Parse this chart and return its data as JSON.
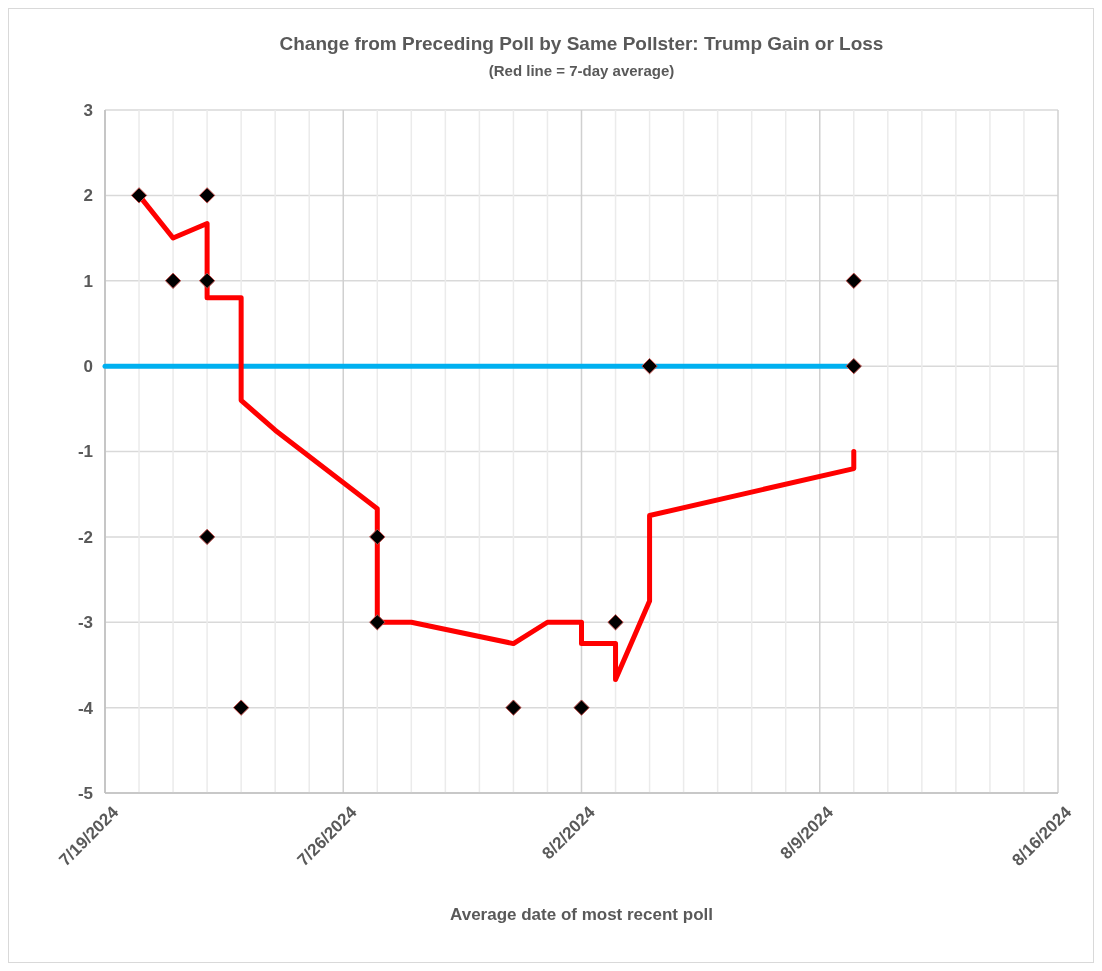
{
  "chart_data": {
    "type": "scatter",
    "title": "Change from Preceding Poll by Same Pollster: Trump Gain or Loss",
    "subtitle": "(Red line = 7-day average)",
    "xlabel": "Average date of most recent poll",
    "xlim": [
      "2024-07-19",
      "2024-08-16"
    ],
    "xticks": [
      {
        "value": "2024-07-19",
        "label": "7/19/2024"
      },
      {
        "value": "2024-07-20",
        "label": null
      },
      {
        "value": "2024-07-21",
        "label": null
      },
      {
        "value": "2024-07-22",
        "label": null
      },
      {
        "value": "2024-07-23",
        "label": null
      },
      {
        "value": "2024-07-24",
        "label": null
      },
      {
        "value": "2024-07-25",
        "label": null
      },
      {
        "value": "2024-07-26",
        "label": "7/26/2024"
      },
      {
        "value": "2024-07-27",
        "label": null
      },
      {
        "value": "2024-07-28",
        "label": null
      },
      {
        "value": "2024-07-29",
        "label": null
      },
      {
        "value": "2024-07-30",
        "label": null
      },
      {
        "value": "2024-07-31",
        "label": null
      },
      {
        "value": "2024-08-01",
        "label": null
      },
      {
        "value": "2024-08-02",
        "label": "8/2/2024"
      },
      {
        "value": "2024-08-03",
        "label": null
      },
      {
        "value": "2024-08-04",
        "label": null
      },
      {
        "value": "2024-08-05",
        "label": null
      },
      {
        "value": "2024-08-06",
        "label": null
      },
      {
        "value": "2024-08-07",
        "label": null
      },
      {
        "value": "2024-08-08",
        "label": null
      },
      {
        "value": "2024-08-09",
        "label": "8/9/2024"
      },
      {
        "value": "2024-08-10",
        "label": null
      },
      {
        "value": "2024-08-11",
        "label": null
      },
      {
        "value": "2024-08-12",
        "label": null
      },
      {
        "value": "2024-08-13",
        "label": null
      },
      {
        "value": "2024-08-14",
        "label": null
      },
      {
        "value": "2024-08-15",
        "label": null
      },
      {
        "value": "2024-08-16",
        "label": "8/16/2024"
      }
    ],
    "ylim": [
      -5,
      3
    ],
    "yticks": [
      -5,
      -4,
      -3,
      -2,
      -1,
      0,
      1,
      2,
      3
    ],
    "grid": true,
    "series": [
      {
        "type": "line",
        "color": "#00b0f0",
        "marker": "none",
        "x": [
          "2024-07-19",
          "2024-08-10"
        ],
        "values": [
          0,
          0
        ]
      },
      {
        "type": "line",
        "color": "#ff0000",
        "marker": "none",
        "x": [
          "2024-07-20",
          "2024-07-21",
          "2024-07-22",
          "2024-07-22",
          "2024-07-23",
          "2024-07-23",
          "2024-07-24",
          "2024-07-27",
          "2024-07-27",
          "2024-07-28",
          "2024-07-31",
          "2024-08-01",
          "2024-08-02",
          "2024-08-02",
          "2024-08-03",
          "2024-08-03",
          "2024-08-04",
          "2024-08-04",
          "2024-08-10",
          "2024-08-10"
        ],
        "values": [
          2,
          1.5,
          1.67,
          0.8,
          0.8,
          -0.4,
          -0.75,
          -1.67,
          -3,
          -3,
          -3.25,
          -3,
          -3,
          -3.25,
          -3.25,
          -3.67,
          -2.75,
          -1.75,
          -1.2,
          -1
        ]
      },
      {
        "color": "#000000",
        "marker": "diamond",
        "x": [
          "2024-07-20",
          "2024-07-21",
          "2024-07-22",
          "2024-07-22",
          "2024-07-22",
          "2024-07-23",
          "2024-07-27",
          "2024-07-27",
          "2024-07-31",
          "2024-08-02",
          "2024-08-03",
          "2024-08-04",
          "2024-08-10",
          "2024-08-10"
        ],
        "values": [
          2,
          1,
          2,
          1,
          -2,
          -4,
          -2,
          -3,
          -4,
          -4,
          -3,
          0,
          1,
          0
        ]
      }
    ]
  }
}
